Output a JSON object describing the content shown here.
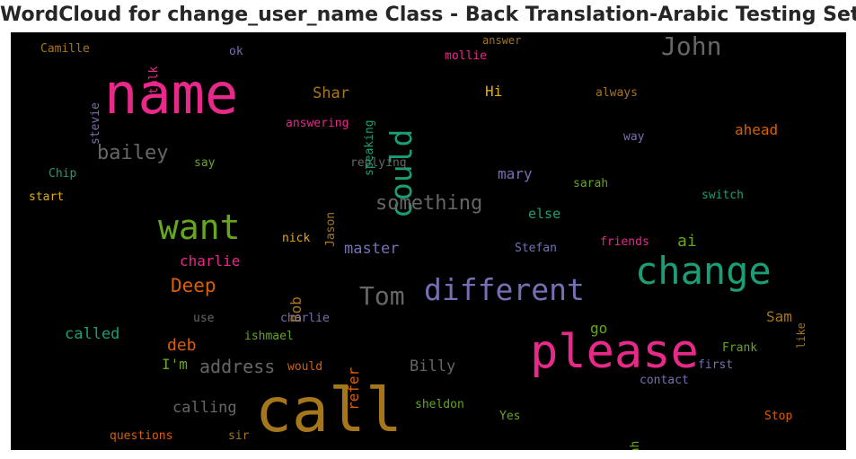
{
  "title": "WordCloud for change_user_name Class - Back Translation-Arabic Testing Set",
  "colors": {
    "background": "#000000",
    "magenta": "#e7298a",
    "teal": "#1b9e77",
    "green": "#66a61e",
    "orange": "#d95f02",
    "purple": "#7570b3",
    "gold": "#e6ab02",
    "brown": "#a6761d",
    "gray": "#666666"
  },
  "words": [
    {
      "id": "call",
      "text": "call",
      "color": "brown"
    },
    {
      "id": "name",
      "text": "name",
      "color": "magenta"
    },
    {
      "id": "please",
      "text": "please",
      "color": "magenta"
    },
    {
      "id": "change",
      "text": "change",
      "color": "teal"
    },
    {
      "id": "want",
      "text": "want",
      "color": "green"
    },
    {
      "id": "different",
      "text": "different",
      "color": "purple"
    },
    {
      "id": "could",
      "text": "could",
      "color": "teal"
    },
    {
      "id": "tom",
      "text": "Tom",
      "color": "gray"
    },
    {
      "id": "john",
      "text": "John",
      "color": "gray"
    },
    {
      "id": "bailey",
      "text": "bailey",
      "color": "gray"
    },
    {
      "id": "something",
      "text": "something",
      "color": "gray"
    },
    {
      "id": "address",
      "text": "address",
      "color": "gray"
    },
    {
      "id": "deep",
      "text": "Deep",
      "color": "orange"
    },
    {
      "id": "calling",
      "text": "calling",
      "color": "gray"
    },
    {
      "id": "billy",
      "text": "Billy",
      "color": "gray"
    },
    {
      "id": "shar",
      "text": "Shar",
      "color": "brown"
    },
    {
      "id": "deb",
      "text": "deb",
      "color": "orange"
    },
    {
      "id": "called",
      "text": "called",
      "color": "teal"
    },
    {
      "id": "charlie1",
      "text": "charlie",
      "color": "magenta"
    },
    {
      "id": "master",
      "text": "master",
      "color": "purple"
    },
    {
      "id": "mary",
      "text": "mary",
      "color": "purple"
    },
    {
      "id": "ai",
      "text": "ai",
      "color": "green"
    },
    {
      "id": "ahead",
      "text": "ahead",
      "color": "orange"
    },
    {
      "id": "else",
      "text": "else",
      "color": "teal"
    },
    {
      "id": "hi",
      "text": "Hi",
      "color": "gold"
    },
    {
      "id": "im",
      "text": "I'm",
      "color": "green"
    },
    {
      "id": "go",
      "text": "go",
      "color": "green"
    },
    {
      "id": "sam",
      "text": "Sam",
      "color": "brown"
    },
    {
      "id": "refer",
      "text": "refer",
      "color": "orange"
    },
    {
      "id": "bob",
      "text": "Bob",
      "color": "brown"
    },
    {
      "id": "answering",
      "text": "answering",
      "color": "magenta"
    },
    {
      "id": "replying",
      "text": "replying",
      "color": "gray"
    },
    {
      "id": "speaking",
      "text": "speaking",
      "color": "teal"
    },
    {
      "id": "mollie",
      "text": "mollie",
      "color": "magenta"
    },
    {
      "id": "answer",
      "text": "answer",
      "color": "brown"
    },
    {
      "id": "always",
      "text": "always",
      "color": "brown"
    },
    {
      "id": "way",
      "text": "way",
      "color": "purple"
    },
    {
      "id": "sarah",
      "text": "sarah",
      "color": "green"
    },
    {
      "id": "switch",
      "text": "switch",
      "color": "teal"
    },
    {
      "id": "friends",
      "text": "friends",
      "color": "magenta"
    },
    {
      "id": "stefan",
      "text": "Stefan",
      "color": "purple"
    },
    {
      "id": "nick",
      "text": "nick",
      "color": "gold"
    },
    {
      "id": "jason",
      "text": "Jason",
      "color": "brown"
    },
    {
      "id": "say",
      "text": "say",
      "color": "green"
    },
    {
      "id": "chip",
      "text": "Chip",
      "color": "teal"
    },
    {
      "id": "start",
      "text": "start",
      "color": "gold"
    },
    {
      "id": "camille",
      "text": "Camille",
      "color": "brown"
    },
    {
      "id": "stevie",
      "text": "stevie",
      "color": "purple"
    },
    {
      "id": "talk",
      "text": "talk",
      "color": "magenta"
    },
    {
      "id": "ok",
      "text": "ok",
      "color": "purple"
    },
    {
      "id": "use",
      "text": "use",
      "color": "gray"
    },
    {
      "id": "charlie2",
      "text": "charlie",
      "color": "purple"
    },
    {
      "id": "ishmael",
      "text": "ishmael",
      "color": "green"
    },
    {
      "id": "would",
      "text": "would",
      "color": "orange"
    },
    {
      "id": "frank",
      "text": "Frank",
      "color": "green"
    },
    {
      "id": "first",
      "text": "first",
      "color": "purple"
    },
    {
      "id": "contact",
      "text": "contact",
      "color": "purple"
    },
    {
      "id": "like",
      "text": "like",
      "color": "brown"
    },
    {
      "id": "sheldon",
      "text": "sheldon",
      "color": "green"
    },
    {
      "id": "yes",
      "text": "Yes",
      "color": "green"
    },
    {
      "id": "yeah",
      "text": "Yeah",
      "color": "green"
    },
    {
      "id": "stop",
      "text": "Stop",
      "color": "orange"
    },
    {
      "id": "questions",
      "text": "questions",
      "color": "orange"
    },
    {
      "id": "sir",
      "text": "sir",
      "color": "brown"
    }
  ]
}
